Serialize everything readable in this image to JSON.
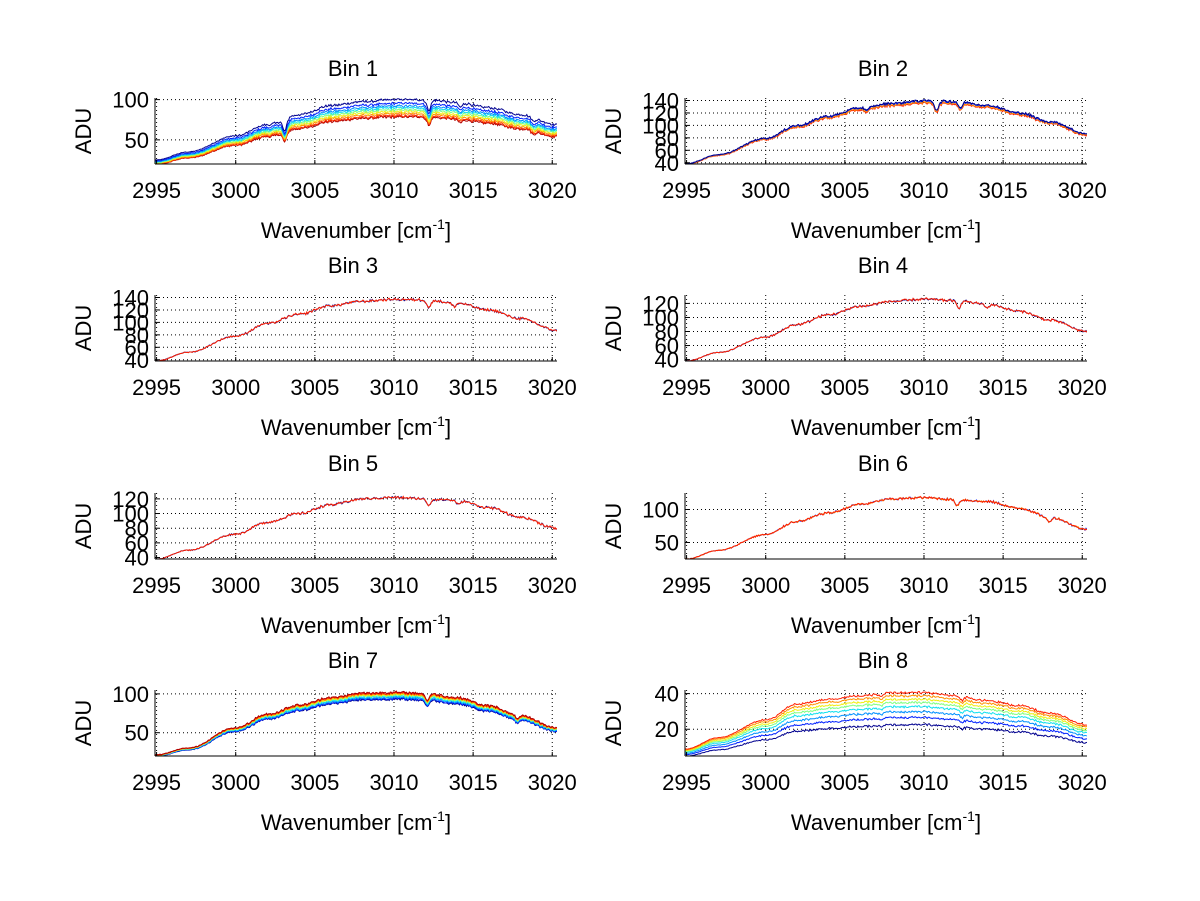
{
  "figure": {
    "background": "#ffffff"
  },
  "jet_colors": [
    "#00008f",
    "#0020ff",
    "#0090ff",
    "#10e0ef",
    "#80ff80",
    "#efef10",
    "#ff9000",
    "#ff2000",
    "#b00000"
  ],
  "chart_data": [
    {
      "type": "line",
      "title": "Bin 1",
      "xlabel": "Wavenumber [cm",
      "xlabel_sup": "-1",
      "xlabel_end": "]",
      "ylabel": "ADU",
      "xlim": [
        2994.9,
        3020.3
      ],
      "ylim": [
        20,
        102
      ],
      "xticks": [
        2995,
        3000,
        3005,
        3010,
        3015,
        3020
      ],
      "yticks": [
        50,
        100
      ],
      "grid": true,
      "base": {
        "x": [
          2995,
          2997,
          3000,
          3002,
          3004,
          3006,
          3008,
          3010,
          3012,
          3014,
          3016,
          3018,
          3020.3
        ],
        "y": [
          20,
          28,
          44,
          55,
          65,
          74,
          78,
          80,
          80,
          77,
          72,
          65,
          55
        ]
      },
      "dips": [
        {
          "x": 3003.1,
          "depth": 12
        },
        {
          "x": 3012.2,
          "depth": 10
        },
        {
          "x": 3014.2,
          "depth": 4
        },
        {
          "x": 3018.8,
          "depth": 4
        }
      ],
      "noise": 1.6,
      "series": [
        {
          "name": "s1",
          "color": "#b00000",
          "scale": 0.98
        },
        {
          "name": "s2",
          "color": "#ff3000",
          "scale": 1.0
        },
        {
          "name": "s3",
          "color": "#ff9000",
          "scale": 1.03
        },
        {
          "name": "s4",
          "color": "#efef10",
          "scale": 1.06
        },
        {
          "name": "s5",
          "color": "#80ff80",
          "scale": 1.09
        },
        {
          "name": "s6",
          "color": "#10e0ef",
          "scale": 1.12
        },
        {
          "name": "s7",
          "color": "#0090ff",
          "scale": 1.15
        },
        {
          "name": "s8",
          "color": "#0020ff",
          "scale": 1.19
        },
        {
          "name": "s9",
          "color": "#00008f",
          "scale": 1.25
        }
      ]
    },
    {
      "type": "line",
      "title": "Bin 2",
      "xlabel": "Wavenumber [cm",
      "xlabel_sup": "-1",
      "xlabel_end": "]",
      "ylabel": "ADU",
      "xlim": [
        2994.9,
        3020.3
      ],
      "ylim": [
        38,
        144
      ],
      "xticks": [
        2995,
        3000,
        3005,
        3010,
        3015,
        3020
      ],
      "yticks": [
        40,
        60,
        80,
        100,
        120,
        140
      ],
      "grid": true,
      "base": {
        "x": [
          2995,
          2997,
          3000,
          3002,
          3004,
          3006,
          3008,
          3010,
          3012,
          3014,
          3016,
          3018,
          3020.3
        ],
        "y": [
          38,
          52,
          78,
          98,
          113,
          126,
          133,
          137,
          136,
          130,
          118,
          104,
          85
        ]
      },
      "dips": [
        {
          "x": 3010.8,
          "depth": 14
        },
        {
          "x": 3012.3,
          "depth": 10
        },
        {
          "x": 3006.4,
          "depth": 5
        }
      ],
      "noise": 2.0,
      "series": [
        {
          "name": "s1",
          "color": "#ff2000",
          "scale": 0.99
        },
        {
          "name": "s2",
          "color": "#ff9000",
          "scale": 1.0
        },
        {
          "name": "s3",
          "color": "#0020ff",
          "scale": 1.015
        },
        {
          "name": "s4",
          "color": "#00008f",
          "scale": 1.02
        }
      ]
    },
    {
      "type": "line",
      "title": "Bin 3",
      "xlabel": "Wavenumber [cm",
      "xlabel_sup": "-1",
      "xlabel_end": "]",
      "ylabel": "ADU",
      "xlim": [
        2994.9,
        3020.3
      ],
      "ylim": [
        38,
        144
      ],
      "xticks": [
        2995,
        3000,
        3005,
        3010,
        3015,
        3020
      ],
      "yticks": [
        40,
        60,
        80,
        100,
        120,
        140
      ],
      "grid": true,
      "base": {
        "x": [
          2995,
          2997,
          3000,
          3002,
          3004,
          3006,
          3008,
          3010,
          3012,
          3014,
          3016,
          3018,
          3020.3
        ],
        "y": [
          38,
          52,
          78,
          98,
          113,
          127,
          134,
          137,
          136,
          131,
          120,
          106,
          87
        ]
      },
      "dips": [
        {
          "x": 3012.2,
          "depth": 12
        },
        {
          "x": 3013.8,
          "depth": 6
        }
      ],
      "noise": 2.0,
      "series": [
        {
          "name": "s1",
          "color": "#00008f",
          "scale": 1.0
        },
        {
          "name": "s2",
          "color": "#ff2000",
          "scale": 1.0
        }
      ]
    },
    {
      "type": "line",
      "title": "Bin 4",
      "xlabel": "Wavenumber [cm",
      "xlabel_sup": "-1",
      "xlabel_end": "]",
      "ylabel": "ADU",
      "xlim": [
        2994.9,
        3020.3
      ],
      "ylim": [
        38,
        132
      ],
      "xticks": [
        2995,
        3000,
        3005,
        3010,
        3015,
        3020
      ],
      "yticks": [
        40,
        60,
        80,
        100,
        120
      ],
      "grid": true,
      "base": {
        "x": [
          2995,
          2997,
          3000,
          3002,
          3004,
          3006,
          3008,
          3010,
          3012,
          3014,
          3016,
          3018,
          3020.3
        ],
        "y": [
          38,
          50,
          72,
          90,
          104,
          116,
          123,
          126,
          124,
          119,
          109,
          96,
          80
        ]
      },
      "dips": [
        {
          "x": 3012.2,
          "depth": 10
        },
        {
          "x": 3014.0,
          "depth": 5
        }
      ],
      "noise": 1.8,
      "series": [
        {
          "name": "s1",
          "color": "#00008f",
          "scale": 1.0
        },
        {
          "name": "s2",
          "color": "#ff2000",
          "scale": 1.0
        }
      ]
    },
    {
      "type": "line",
      "title": "Bin 5",
      "xlabel": "Wavenumber [cm",
      "xlabel_sup": "-1",
      "xlabel_end": "]",
      "ylabel": "ADU",
      "xlim": [
        2994.9,
        3020.3
      ],
      "ylim": [
        38,
        128
      ],
      "xticks": [
        2995,
        3000,
        3005,
        3010,
        3015,
        3020
      ],
      "yticks": [
        40,
        60,
        80,
        100,
        120
      ],
      "grid": true,
      "base": {
        "x": [
          2995,
          2997,
          3000,
          3002,
          3004,
          3006,
          3008,
          3010,
          3012,
          3014,
          3016,
          3018,
          3020.3
        ],
        "y": [
          38,
          50,
          72,
          88,
          100,
          112,
          120,
          122,
          120,
          118,
          108,
          95,
          80
        ]
      },
      "dips": [
        {
          "x": 3012.2,
          "depth": 9
        },
        {
          "x": 3014.1,
          "depth": 6
        }
      ],
      "noise": 1.8,
      "series": [
        {
          "name": "s1",
          "color": "#00008f",
          "scale": 1.0
        },
        {
          "name": "s2",
          "color": "#ff2000",
          "scale": 1.0
        }
      ]
    },
    {
      "type": "line",
      "title": "Bin 6",
      "xlabel": "Wavenumber [cm",
      "xlabel_sup": "-1",
      "xlabel_end": "]",
      "ylabel": "ADU",
      "xlim": [
        2994.9,
        3020.3
      ],
      "ylim": [
        25,
        125
      ],
      "xticks": [
        2995,
        3000,
        3005,
        3010,
        3015,
        3020
      ],
      "yticks": [
        50,
        100
      ],
      "grid": true,
      "base": {
        "x": [
          2995,
          2997,
          3000,
          3002,
          3004,
          3006,
          3008,
          3010,
          3012,
          3014,
          3016,
          3018,
          3020.3
        ],
        "y": [
          25,
          38,
          62,
          82,
          95,
          108,
          116,
          118,
          115,
          112,
          102,
          88,
          70
        ]
      },
      "dips": [
        {
          "x": 3012.1,
          "depth": 9
        },
        {
          "x": 3017.9,
          "depth": 7
        }
      ],
      "noise": 1.8,
      "series": [
        {
          "name": "s1",
          "color": "#0020ff",
          "scale": 1.0
        },
        {
          "name": "s2",
          "color": "#ff9000",
          "scale": 1.0
        },
        {
          "name": "s3",
          "color": "#ff2000",
          "scale": 1.0
        }
      ]
    },
    {
      "type": "line",
      "title": "Bin 7",
      "xlabel": "Wavenumber [cm",
      "xlabel_sup": "-1",
      "xlabel_end": "]",
      "ylabel": "ADU",
      "xlim": [
        2994.9,
        3020.3
      ],
      "ylim": [
        20,
        105
      ],
      "xticks": [
        2995,
        3000,
        3005,
        3010,
        3015,
        3020
      ],
      "yticks": [
        50,
        100
      ],
      "grid": true,
      "base": {
        "x": [
          2995,
          2997,
          3000,
          3002,
          3004,
          3006,
          3008,
          3010,
          3012,
          3014,
          3016,
          3018,
          3020.3
        ],
        "y": [
          20,
          28,
          52,
          68,
          79,
          88,
          93,
          94,
          93,
          88,
          78,
          66,
          52
        ]
      },
      "dips": [
        {
          "x": 3012.1,
          "depth": 8
        },
        {
          "x": 3017.8,
          "depth": 3
        }
      ],
      "noise": 1.5,
      "series": [
        {
          "name": "s1",
          "color": "#00008f",
          "scale": 0.99
        },
        {
          "name": "s2",
          "color": "#0020ff",
          "scale": 1.0
        },
        {
          "name": "s3",
          "color": "#0090ff",
          "scale": 1.015
        },
        {
          "name": "s4",
          "color": "#10e0ef",
          "scale": 1.03
        },
        {
          "name": "s5",
          "color": "#80ff80",
          "scale": 1.045
        },
        {
          "name": "s6",
          "color": "#efef10",
          "scale": 1.055
        },
        {
          "name": "s7",
          "color": "#ff9000",
          "scale": 1.065
        },
        {
          "name": "s8",
          "color": "#ff2000",
          "scale": 1.075
        },
        {
          "name": "s9",
          "color": "#b00000",
          "scale": 1.085
        }
      ]
    },
    {
      "type": "line",
      "title": "Bin 8",
      "xlabel": "Wavenumber [cm",
      "xlabel_sup": "-1",
      "xlabel_end": "]",
      "ylabel": "ADU",
      "xlim": [
        2994.9,
        3020.3
      ],
      "ylim": [
        5,
        42
      ],
      "xticks": [
        2995,
        3000,
        3005,
        3010,
        3015,
        3020
      ],
      "yticks": [
        20,
        40
      ],
      "grid": true,
      "base": {
        "x": [
          2995,
          2997,
          3000,
          3002,
          3004,
          3006,
          3008,
          3010,
          3012,
          3014,
          3016,
          3018,
          3020.3
        ],
        "y": [
          5,
          8.5,
          14,
          19,
          20.5,
          21.5,
          22.5,
          22.5,
          21.5,
          20,
          18.5,
          16,
          12.5
        ]
      },
      "dips": [
        {
          "x": 3012.4,
          "depth": 1.2
        },
        {
          "x": 3007.3,
          "depth": 1.0
        }
      ],
      "noise": 0.6,
      "series": [
        {
          "name": "s1",
          "color": "#00008f",
          "scale": 1.0
        },
        {
          "name": "s2",
          "color": "#0020ff",
          "scale": 1.18
        },
        {
          "name": "s3",
          "color": "#0090ff",
          "scale": 1.32
        },
        {
          "name": "s4",
          "color": "#10e0ef",
          "scale": 1.45
        },
        {
          "name": "s5",
          "color": "#80ff80",
          "scale": 1.55
        },
        {
          "name": "s6",
          "color": "#efef10",
          "scale": 1.63
        },
        {
          "name": "s7",
          "color": "#ff9000",
          "scale": 1.72
        },
        {
          "name": "s8",
          "color": "#ff2000",
          "scale": 1.8
        }
      ]
    }
  ]
}
